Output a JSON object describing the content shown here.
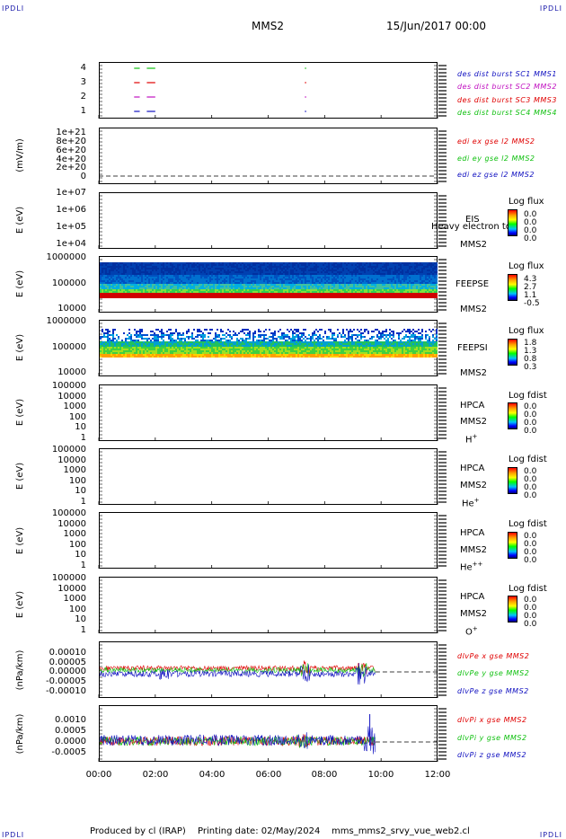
{
  "corners": {
    "tl": "IPDLI",
    "tr": "IPDLI",
    "bl": "IPDLI",
    "br": "IPDLI"
  },
  "header": {
    "mission": "MMS2",
    "datetime": "15/Jun/2017 00:00"
  },
  "footer": {
    "produced": "Produced by cl (IRAP)",
    "printing": "Printing date: 02/May/2024",
    "script": "mms_mms2_srvy_vue_web2.cl"
  },
  "colors": {
    "mms1": "#1010c0",
    "mms2": "#c010c0",
    "mms3": "#e00000",
    "mms4": "#10c010",
    "red": "#e00000",
    "green": "#10c010",
    "blue": "#1010c0"
  },
  "chart_data": [
    {
      "type": "line",
      "name": "burst",
      "yticks": [
        "4",
        "3",
        "2",
        "1"
      ],
      "legend": [
        "des dist burst SC1 MMS1",
        "des dist burst SC2 MMS2",
        "des dist burst SC3 MMS3",
        "des dist burst SC4 MMS4"
      ],
      "series": [
        {
          "level": 4,
          "segments": [
            [
              1.25,
              1.45
            ],
            [
              1.7,
              2.0
            ],
            [
              7.3,
              7.32
            ]
          ]
        },
        {
          "level": 3,
          "segments": [
            [
              1.25,
              1.45
            ],
            [
              1.7,
              2.0
            ],
            [
              7.3,
              7.32
            ]
          ]
        },
        {
          "level": 2,
          "segments": [
            [
              1.25,
              1.45
            ],
            [
              1.7,
              2.0
            ],
            [
              7.3,
              7.32
            ]
          ]
        },
        {
          "level": 1,
          "segments": [
            [
              1.25,
              1.45
            ],
            [
              1.7,
              2.0
            ],
            [
              7.3,
              7.32
            ]
          ]
        }
      ]
    },
    {
      "type": "line",
      "ylabel": "(mV/m)",
      "yticks": [
        "1e+21",
        "8e+20",
        "6e+20",
        "4e+20",
        "2e+20",
        "0"
      ],
      "legend": [
        "edi ex gse l2 MMS2",
        "edi ey gse l2 MMS2",
        "edi ez gse l2 MMS2"
      ]
    },
    {
      "type": "heatmap",
      "ylabel": "E (eV)",
      "yticks": [
        "1e+07",
        "1e+06",
        "1e+05",
        "1e+04"
      ],
      "instrument": [
        "EIS",
        "MMS2"
      ],
      "overlay": "Heavy electron to",
      "cb_title": "Log flux",
      "cb_values": [
        "0.0",
        "0.0",
        "0.0",
        "0.0"
      ]
    },
    {
      "type": "heatmap",
      "ylabel": "E (eV)",
      "yticks": [
        "1000000",
        "100000",
        "10000"
      ],
      "instrument": [
        "FEEPSE",
        "MMS2"
      ],
      "cb_title": "Log flux",
      "cb_values": [
        "4.3",
        "2.7",
        "1.1",
        "-0.5"
      ]
    },
    {
      "type": "heatmap",
      "ylabel": "E (eV)",
      "yticks": [
        "1000000",
        "100000",
        "10000"
      ],
      "instrument": [
        "FEEPSI",
        "MMS2"
      ],
      "cb_title": "Log flux",
      "cb_values": [
        "1.8",
        "1.3",
        "0.8",
        "0.3"
      ]
    },
    {
      "type": "heatmap",
      "ylabel": "E (eV)",
      "yticks": [
        "100000",
        "10000",
        "1000",
        "100",
        "10",
        "1"
      ],
      "instrument": [
        "HPCA",
        "MMS2",
        "H"
      ],
      "ion_sup": "+",
      "cb_title": "Log fdist",
      "cb_values": [
        "0.0",
        "0.0",
        "0.0",
        "0.0"
      ]
    },
    {
      "type": "heatmap",
      "ylabel": "E (eV)",
      "yticks": [
        "100000",
        "10000",
        "1000",
        "100",
        "10",
        "1"
      ],
      "instrument": [
        "HPCA",
        "MMS2",
        "He"
      ],
      "ion_sup": "+",
      "cb_title": "Log fdist",
      "cb_values": [
        "0.0",
        "0.0",
        "0.0",
        "0.0"
      ]
    },
    {
      "type": "heatmap",
      "ylabel": "E (eV)",
      "yticks": [
        "100000",
        "10000",
        "1000",
        "100",
        "10",
        "1"
      ],
      "instrument": [
        "HPCA",
        "MMS2",
        "He"
      ],
      "ion_sup": "++",
      "cb_title": "Log fdist",
      "cb_values": [
        "0.0",
        "0.0",
        "0.0",
        "0.0"
      ]
    },
    {
      "type": "heatmap",
      "ylabel": "E (eV)",
      "yticks": [
        "100000",
        "10000",
        "1000",
        "100",
        "10",
        "1"
      ],
      "instrument": [
        "HPCA",
        "MMS2",
        "O"
      ],
      "ion_sup": "+",
      "cb_title": "Log fdist",
      "cb_values": [
        "0.0",
        "0.0",
        "0.0",
        "0.0"
      ]
    },
    {
      "type": "line",
      "ylabel": "(nPa/km)",
      "yticks": [
        "0.00010",
        "0.00005",
        "0.00000",
        "-0.00005",
        "-0.00010"
      ],
      "legend": [
        "dlvPe x gse MMS2",
        "dlvPe y gse MMS2",
        "dlvPe z gse MMS2"
      ],
      "data_end_hour": 9.8
    },
    {
      "type": "line",
      "ylabel": "(nPa/km)",
      "yticks": [
        "0.0010",
        "0.0005",
        "0.0000",
        "-0.0005"
      ],
      "legend": [
        "dlvPi x gse MMS2",
        "dlvPi y gse MMS2",
        "dlvPi z gse MMS2"
      ],
      "data_end_hour": 9.8
    }
  ],
  "xaxis": {
    "ticks": [
      "00:00",
      "02:00",
      "04:00",
      "06:00",
      "08:00",
      "10:00",
      "12:00"
    ],
    "range_hours": [
      0,
      12
    ]
  }
}
